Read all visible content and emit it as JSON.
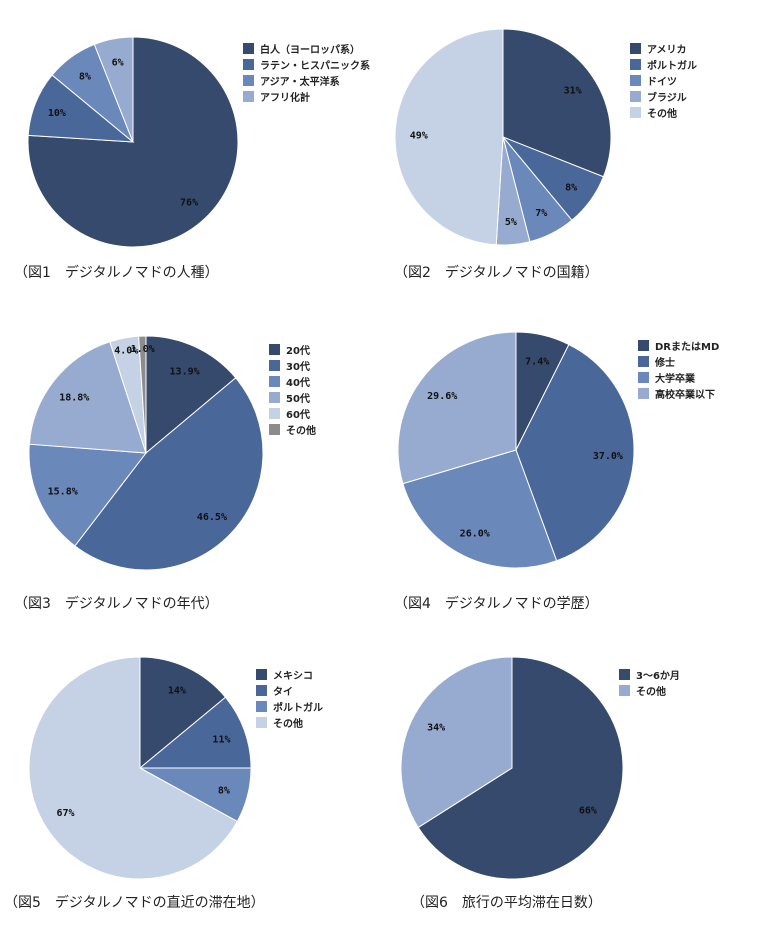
{
  "colors": {
    "c1": "#354a6c",
    "c2": "#4a679a",
    "c3": "#6b88bb",
    "c4": "#96abcf",
    "c5": "#c5d1e4",
    "c6": "#8c8c8c"
  },
  "chart_data": [
    {
      "type": "pie",
      "title": "（図1　デジタルノマドの人種）",
      "categories": [
        "白人（ヨーロッパ系）",
        "ラテン・ヒスパニック系",
        "アジア・太平洋系",
        "アフリカ系"
      ],
      "legend_labels": [
        "白人（ヨーロッパ系）",
        "ラテン・ヒスパニック系",
        "アジア・太平洋系",
        "アフリ化計"
      ],
      "values": [
        76,
        10,
        8,
        6
      ],
      "value_labels": [
        "76%",
        "10%",
        "8%",
        "6%"
      ],
      "colors": [
        "#354a6c",
        "#4a679a",
        "#6b88bb",
        "#96abcf"
      ],
      "legend": "right"
    },
    {
      "type": "pie",
      "title": "（図2　デジタルノマドの国籍）",
      "categories": [
        "アメリカ",
        "ポルトガル",
        "ドイツ",
        "ブラジル",
        "その他"
      ],
      "values": [
        31,
        8,
        7,
        5,
        49
      ],
      "value_labels": [
        "31%",
        "8%",
        "7%",
        "5%",
        "49%"
      ],
      "colors": [
        "#354a6c",
        "#4a679a",
        "#6b88bb",
        "#96abcf",
        "#c5d1e4"
      ],
      "legend": "right"
    },
    {
      "type": "pie",
      "title": "（図3　デジタルノマドの年代）",
      "categories": [
        "20代",
        "30代",
        "40代",
        "50代",
        "60代",
        "その他"
      ],
      "values": [
        13.9,
        46.5,
        15.8,
        18.8,
        4.0,
        1.0
      ],
      "value_labels": [
        "13.9%",
        "46.5%",
        "15.8%",
        "18.8%",
        "4.0%",
        "1.0%"
      ],
      "colors": [
        "#354a6c",
        "#4a679a",
        "#6b88bb",
        "#96abcf",
        "#c5d1e4",
        "#8c8c8c"
      ],
      "legend": "right"
    },
    {
      "type": "pie",
      "title": "（図4　デジタルノマドの学歴）",
      "categories": [
        "DRまたはMD",
        "修士",
        "大学卒業",
        "高校卒業以下"
      ],
      "values": [
        7.4,
        37.0,
        26.0,
        29.6
      ],
      "value_labels": [
        "7.4%",
        "37.0%",
        "26.0%",
        "29.6%"
      ],
      "colors": [
        "#354a6c",
        "#4a679a",
        "#6b88bb",
        "#96abcf"
      ],
      "legend": "right"
    },
    {
      "type": "pie",
      "title": "（図5　デジタルノマドの直近の滞在地）",
      "categories": [
        "メキシコ",
        "タイ",
        "ポルトガル",
        "その他"
      ],
      "values": [
        14,
        11,
        8,
        67
      ],
      "value_labels": [
        "14%",
        "11%",
        "8%",
        "67%"
      ],
      "colors": [
        "#354a6c",
        "#4a679a",
        "#6b88bb",
        "#c5d1e4"
      ],
      "legend": "right"
    },
    {
      "type": "pie",
      "title": "（図6　旅行の平均滞在日数）",
      "categories": [
        "3～6か月",
        "その他"
      ],
      "values": [
        66,
        34
      ],
      "value_labels": [
        "66%",
        "34%"
      ],
      "colors": [
        "#354a6c",
        "#96abcf"
      ],
      "legend": "right"
    }
  ]
}
